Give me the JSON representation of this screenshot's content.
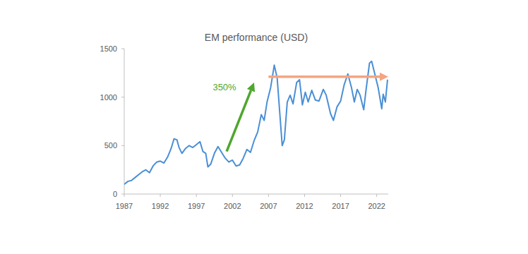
{
  "chart_data": {
    "type": "line",
    "title": "EM performance (USD)",
    "x": [
      1987.0,
      1987.5,
      1988.0,
      1988.5,
      1989.0,
      1989.5,
      1990.0,
      1990.5,
      1991.0,
      1991.5,
      1992.0,
      1992.5,
      1993.0,
      1993.5,
      1993.9,
      1994.3,
      1994.6,
      1995.0,
      1995.5,
      1996.0,
      1996.5,
      1997.0,
      1997.5,
      1997.9,
      1998.3,
      1998.6,
      1999.0,
      1999.5,
      2000.0,
      2000.5,
      2001.0,
      2001.5,
      2002.0,
      2002.5,
      2003.0,
      2003.5,
      2004.0,
      2004.5,
      2005.0,
      2005.5,
      2006.0,
      2006.4,
      2006.8,
      2007.3,
      2007.8,
      2008.2,
      2008.6,
      2008.9,
      2009.2,
      2009.6,
      2010.0,
      2010.4,
      2010.9,
      2011.3,
      2011.7,
      2012.1,
      2012.5,
      2013.0,
      2013.5,
      2014.0,
      2014.6,
      2015.0,
      2015.6,
      2016.0,
      2016.5,
      2017.0,
      2017.5,
      2018.0,
      2018.5,
      2018.9,
      2019.3,
      2019.7,
      2020.2,
      2020.5,
      2021.0,
      2021.3,
      2021.7,
      2022.2,
      2022.7,
      2022.9,
      2023.2,
      2023.5
    ],
    "values": [
      100,
      130,
      140,
      170,
      200,
      230,
      250,
      220,
      290,
      330,
      340,
      320,
      380,
      470,
      570,
      560,
      480,
      420,
      470,
      500,
      480,
      510,
      540,
      440,
      420,
      280,
      310,
      420,
      490,
      430,
      370,
      330,
      350,
      290,
      300,
      370,
      460,
      430,
      550,
      640,
      820,
      760,
      950,
      1100,
      1330,
      1200,
      800,
      500,
      560,
      950,
      1020,
      930,
      1150,
      1180,
      920,
      1050,
      950,
      1070,
      970,
      960,
      1080,
      1020,
      830,
      760,
      900,
      960,
      1130,
      1240,
      1100,
      950,
      1080,
      1020,
      870,
      1060,
      1350,
      1370,
      1250,
      1100,
      880,
      1030,
      950,
      1180
    ],
    "color": "#4a8fd6",
    "xlim": [
      1987,
      2023.6
    ],
    "xticks": [
      1987,
      1992,
      1997,
      2002,
      2007,
      2012,
      2017,
      2022
    ],
    "ylim": [
      0,
      1500
    ],
    "yticks": [
      0,
      500,
      1000,
      1500
    ],
    "grid": false,
    "annotations": [
      {
        "text": "350%",
        "text_at": [
          2000.9,
          1070
        ],
        "from": [
          2001.2,
          440
        ],
        "to": [
          2005.0,
          1150
        ],
        "color": "#4ea72e"
      },
      {
        "from": [
          2007.0,
          1210
        ],
        "to": [
          2023.6,
          1210
        ],
        "color": "#f4a582"
      }
    ]
  }
}
